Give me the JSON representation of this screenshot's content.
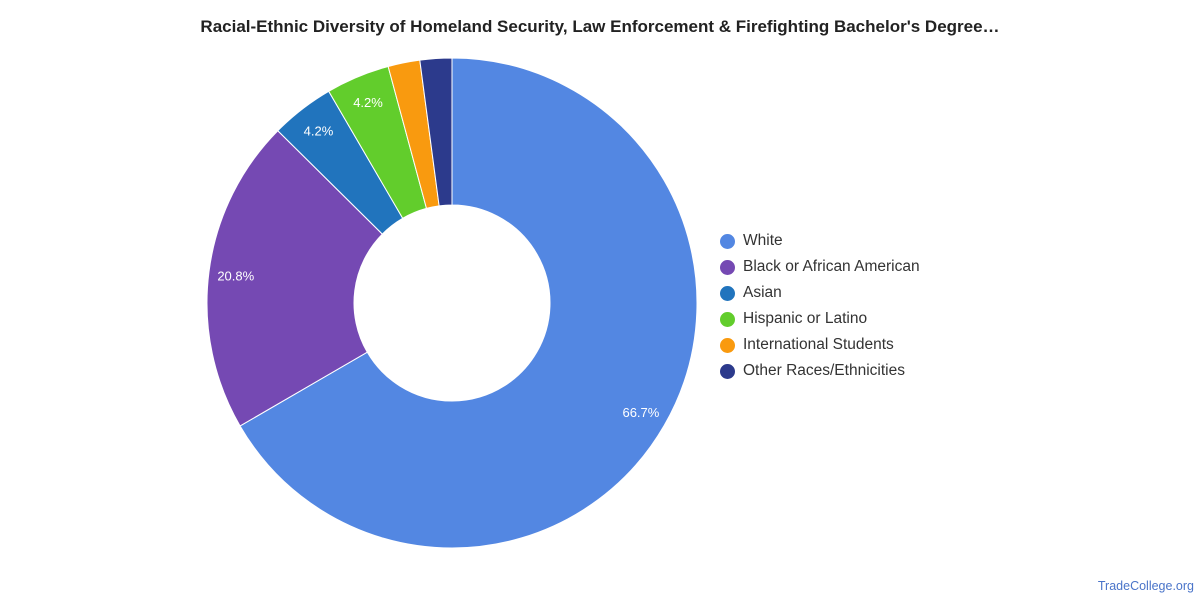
{
  "chart_data": {
    "type": "pie",
    "subtype": "donut",
    "title": "Racial-Ethnic Diversity of Homeland Security, Law Enforcement & Firefighting Bachelor's Degree…",
    "legend_position": "right",
    "series": [
      {
        "categories": [
          "White",
          "Black or African American",
          "Asian",
          "Hispanic or Latino",
          "International Students",
          "Other Races/Ethnicities"
        ],
        "values": [
          66.7,
          20.8,
          4.2,
          4.2,
          2.1,
          2.1
        ],
        "data_labels": [
          "66.7%",
          "20.8%",
          "4.2%",
          "4.2%",
          "",
          ""
        ],
        "colors": [
          "#5387e2",
          "#7549b3",
          "#2174bd",
          "#62cd2c",
          "#f99a0f",
          "#2c3a8c"
        ]
      }
    ]
  },
  "watermark": "TradeCollege.org"
}
